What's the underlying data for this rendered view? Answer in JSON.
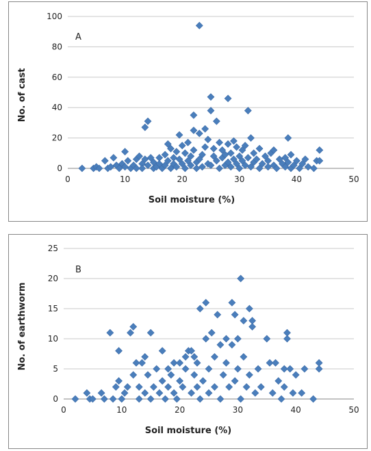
{
  "chart_data": [
    {
      "type": "scatter",
      "panel_label": "A",
      "xlabel": "Soil moisture (%)",
      "ylabel": "No. of cast",
      "xlim": [
        0,
        50
      ],
      "ylim": [
        0,
        100
      ],
      "x_ticks": [
        "0",
        "10",
        "20",
        "30",
        "40",
        "50"
      ],
      "y_ticks": [
        "0",
        "20",
        "40",
        "60",
        "80",
        "100"
      ],
      "grid": true,
      "marker_color": "#4a7ebb",
      "points": [
        [
          2.5,
          0
        ],
        [
          4.5,
          0
        ],
        [
          5,
          1
        ],
        [
          5.5,
          0
        ],
        [
          6.5,
          5
        ],
        [
          7,
          0
        ],
        [
          7.5,
          1
        ],
        [
          8,
          7
        ],
        [
          8.5,
          2
        ],
        [
          9,
          0
        ],
        [
          9.5,
          3
        ],
        [
          10,
          11
        ],
        [
          10,
          1
        ],
        [
          10.5,
          5
        ],
        [
          11,
          0
        ],
        [
          11.5,
          2
        ],
        [
          12,
          6
        ],
        [
          12,
          0
        ],
        [
          12.5,
          8
        ],
        [
          13,
          3
        ],
        [
          13,
          0
        ],
        [
          13.5,
          6
        ],
        [
          13.5,
          27
        ],
        [
          14,
          31
        ],
        [
          14,
          2
        ],
        [
          14.5,
          7
        ],
        [
          15,
          0
        ],
        [
          15,
          4
        ],
        [
          15.5,
          1
        ],
        [
          16,
          7
        ],
        [
          16,
          3
        ],
        [
          16.5,
          0
        ],
        [
          17,
          9
        ],
        [
          17,
          2
        ],
        [
          17.5,
          5
        ],
        [
          17.5,
          16
        ],
        [
          18,
          13
        ],
        [
          18,
          0
        ],
        [
          18.5,
          7
        ],
        [
          18.5,
          3
        ],
        [
          19,
          11
        ],
        [
          19,
          1
        ],
        [
          19.5,
          22
        ],
        [
          19.5,
          6
        ],
        [
          20,
          3
        ],
        [
          20,
          15
        ],
        [
          20.5,
          0
        ],
        [
          20.5,
          10
        ],
        [
          21,
          17
        ],
        [
          21,
          5
        ],
        [
          21.5,
          2
        ],
        [
          21.5,
          8
        ],
        [
          22,
          25
        ],
        [
          22,
          35
        ],
        [
          22,
          12
        ],
        [
          22.5,
          0
        ],
        [
          22.5,
          4
        ],
        [
          23,
          94
        ],
        [
          23,
          6
        ],
        [
          23,
          23
        ],
        [
          23.5,
          1
        ],
        [
          23.5,
          9
        ],
        [
          24,
          26
        ],
        [
          24,
          14
        ],
        [
          24.5,
          3
        ],
        [
          24.5,
          19
        ],
        [
          25,
          47
        ],
        [
          25,
          38
        ],
        [
          25,
          2
        ],
        [
          25.5,
          8
        ],
        [
          25.5,
          13
        ],
        [
          26,
          31
        ],
        [
          26,
          5
        ],
        [
          26.5,
          0
        ],
        [
          26.5,
          17
        ],
        [
          27,
          7
        ],
        [
          27,
          12
        ],
        [
          27.5,
          2
        ],
        [
          27.5,
          9
        ],
        [
          28,
          46
        ],
        [
          28,
          16
        ],
        [
          28,
          4
        ],
        [
          28.5,
          1
        ],
        [
          28.5,
          10
        ],
        [
          29,
          6
        ],
        [
          29,
          18
        ],
        [
          29.5,
          3
        ],
        [
          29.5,
          14
        ],
        [
          30,
          8
        ],
        [
          30,
          0
        ],
        [
          30.5,
          12
        ],
        [
          30.5,
          5
        ],
        [
          31,
          2
        ],
        [
          31,
          15
        ],
        [
          31.5,
          7
        ],
        [
          31.5,
          38
        ],
        [
          32,
          20
        ],
        [
          32,
          1
        ],
        [
          32.5,
          10
        ],
        [
          32.5,
          4
        ],
        [
          33,
          6
        ],
        [
          33.5,
          0
        ],
        [
          33.5,
          13
        ],
        [
          34,
          3
        ],
        [
          34.5,
          8
        ],
        [
          35,
          1
        ],
        [
          35,
          5
        ],
        [
          35.5,
          10
        ],
        [
          36,
          2
        ],
        [
          36,
          12
        ],
        [
          36.5,
          0
        ],
        [
          37,
          6
        ],
        [
          37.5,
          3
        ],
        [
          38,
          1
        ],
        [
          38,
          7
        ],
        [
          38.5,
          20
        ],
        [
          38.5,
          4
        ],
        [
          39,
          9
        ],
        [
          39,
          0
        ],
        [
          39.5,
          2
        ],
        [
          40,
          5
        ],
        [
          40.5,
          0
        ],
        [
          41,
          3
        ],
        [
          41.5,
          6
        ],
        [
          42,
          1
        ],
        [
          43,
          0
        ],
        [
          43.5,
          5
        ],
        [
          44,
          12
        ],
        [
          44,
          5
        ]
      ]
    },
    {
      "type": "scatter",
      "panel_label": "B",
      "xlabel": "Soil moisture (%)",
      "ylabel": "No. of earthworm",
      "xlim": [
        0,
        50
      ],
      "ylim": [
        0,
        25
      ],
      "x_ticks": [
        "0",
        "10",
        "20",
        "30",
        "40",
        "50"
      ],
      "y_ticks": [
        "0",
        "5",
        "10",
        "15",
        "20",
        "25"
      ],
      "grid": true,
      "marker_color": "#4a7ebb",
      "points": [
        [
          2,
          0
        ],
        [
          4,
          1
        ],
        [
          4.5,
          0
        ],
        [
          5,
          0
        ],
        [
          6.5,
          1
        ],
        [
          7,
          0
        ],
        [
          8,
          11
        ],
        [
          8.5,
          0
        ],
        [
          9,
          2
        ],
        [
          9.5,
          3
        ],
        [
          9.5,
          8
        ],
        [
          10,
          0
        ],
        [
          10.5,
          1
        ],
        [
          11,
          2
        ],
        [
          11.5,
          11
        ],
        [
          12,
          4
        ],
        [
          12,
          12
        ],
        [
          12.5,
          6
        ],
        [
          13,
          0
        ],
        [
          13,
          2
        ],
        [
          13.5,
          6
        ],
        [
          14,
          7
        ],
        [
          14,
          1
        ],
        [
          14.5,
          4
        ],
        [
          15,
          11
        ],
        [
          15,
          0
        ],
        [
          15.5,
          2
        ],
        [
          16,
          5
        ],
        [
          16.5,
          1
        ],
        [
          17,
          8
        ],
        [
          17,
          3
        ],
        [
          17.5,
          0
        ],
        [
          18,
          5
        ],
        [
          18,
          2
        ],
        [
          18.5,
          4
        ],
        [
          19,
          6
        ],
        [
          19,
          1
        ],
        [
          19.5,
          0
        ],
        [
          20,
          3
        ],
        [
          20,
          6
        ],
        [
          20.5,
          2
        ],
        [
          21,
          7
        ],
        [
          21,
          5
        ],
        [
          21.5,
          8
        ],
        [
          22,
          8
        ],
        [
          22,
          1
        ],
        [
          22.5,
          4
        ],
        [
          22.5,
          7
        ],
        [
          23,
          2
        ],
        [
          23,
          6
        ],
        [
          23.5,
          15
        ],
        [
          23.5,
          0
        ],
        [
          24,
          3
        ],
        [
          24.5,
          16
        ],
        [
          24.5,
          10
        ],
        [
          25,
          5
        ],
        [
          25,
          1
        ],
        [
          25.5,
          11
        ],
        [
          26,
          7
        ],
        [
          26,
          2
        ],
        [
          26.5,
          14
        ],
        [
          27,
          9
        ],
        [
          27,
          0
        ],
        [
          27.5,
          4
        ],
        [
          28,
          10
        ],
        [
          28,
          6
        ],
        [
          28.5,
          2
        ],
        [
          29,
          16
        ],
        [
          29,
          9
        ],
        [
          29.5,
          3
        ],
        [
          29.5,
          14
        ],
        [
          30,
          10
        ],
        [
          30,
          5
        ],
        [
          30.5,
          20
        ],
        [
          30.5,
          0
        ],
        [
          31,
          13
        ],
        [
          31,
          7
        ],
        [
          31.5,
          2
        ],
        [
          32,
          15
        ],
        [
          32,
          4
        ],
        [
          32.5,
          13
        ],
        [
          32.5,
          12
        ],
        [
          33,
          1
        ],
        [
          33.5,
          5
        ],
        [
          34,
          2
        ],
        [
          35,
          10
        ],
        [
          35.5,
          6
        ],
        [
          36,
          1
        ],
        [
          36.5,
          6
        ],
        [
          37,
          3
        ],
        [
          37.5,
          0
        ],
        [
          38,
          5
        ],
        [
          38,
          2
        ],
        [
          38.5,
          11
        ],
        [
          38.5,
          10
        ],
        [
          39,
          5
        ],
        [
          39.5,
          1
        ],
        [
          40,
          4
        ],
        [
          41,
          1
        ],
        [
          41.5,
          5
        ],
        [
          43,
          0
        ],
        [
          44,
          6
        ],
        [
          44,
          5
        ]
      ]
    }
  ]
}
